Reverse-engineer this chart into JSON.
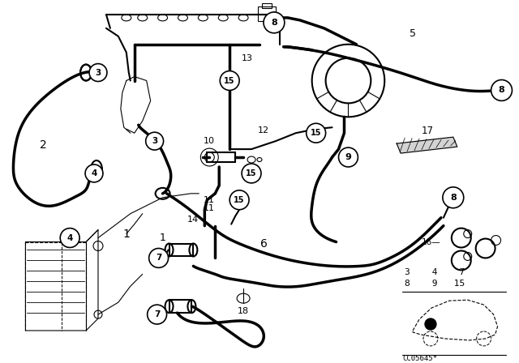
{
  "bg_color": "#ffffff",
  "code": "CC05645*",
  "lw_thin": 0.8,
  "lw_med": 1.5,
  "lw_thick": 2.5
}
